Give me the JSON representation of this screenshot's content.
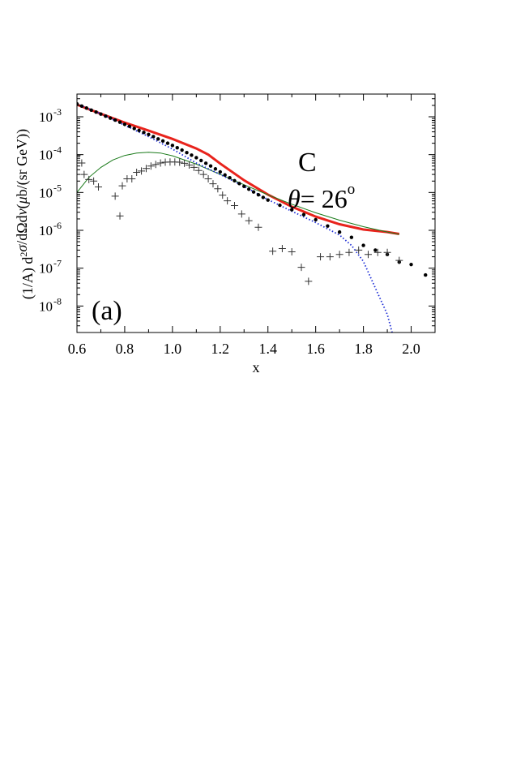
{
  "chart_data": {
    "type": "scatter",
    "panel_label": "(a)",
    "annotation_target": "C",
    "annotation_angle": {
      "symbol": "θ",
      "text": "= 26",
      "superscript": "o"
    },
    "xlabel": "x",
    "ylabel": {
      "parts": [
        {
          "t": "(1/A) d"
        },
        {
          "t": "2",
          "sup": true
        },
        {
          "t": "σ",
          "italic": true
        },
        {
          "t": "/dΩd"
        },
        {
          "t": "ν",
          "italic": true
        },
        {
          "t": "("
        },
        {
          "t": "μ",
          "italic": true
        },
        {
          "t": "b/(sr GeV))"
        }
      ]
    },
    "xlim": [
      0.6,
      2.1
    ],
    "ylim_log10": [
      -8.7,
      -2.4
    ],
    "x_ticks": [
      {
        "v": 0.6,
        "label": "0.6"
      },
      {
        "v": 0.8,
        "label": "0.8"
      },
      {
        "v": 1.0,
        "label": "1.0"
      },
      {
        "v": 1.2,
        "label": "1.2"
      },
      {
        "v": 1.4,
        "label": "1.4"
      },
      {
        "v": 1.6,
        "label": "1.6"
      },
      {
        "v": 1.8,
        "label": "1.8"
      },
      {
        "v": 2.0,
        "label": "2.0"
      }
    ],
    "y_ticks": [
      {
        "exp": -3,
        "base": "10",
        "label": "-3"
      },
      {
        "exp": -4,
        "base": "10",
        "label": "-4"
      },
      {
        "exp": -5,
        "base": "10",
        "label": "-5"
      },
      {
        "exp": -6,
        "base": "10",
        "label": "-6"
      },
      {
        "exp": -7,
        "base": "10",
        "label": "-7"
      },
      {
        "exp": -8,
        "base": "10",
        "label": "-8"
      }
    ],
    "series": [
      {
        "style": "solid-thick",
        "color": "#e8231c",
        "x": [
          0.6,
          0.7,
          0.8,
          0.9,
          1.0,
          1.1,
          1.15,
          1.2,
          1.3,
          1.4,
          1.5,
          1.6,
          1.7,
          1.8,
          1.9,
          1.95
        ],
        "y": [
          0.0021,
          0.0012,
          0.0007,
          0.00043,
          0.00026,
          0.000145,
          0.0001,
          5.8e-05,
          2.1e-05,
          8.8e-06,
          4.2e-06,
          2.3e-06,
          1.45e-06,
          1.05e-06,
          9e-07,
          8e-07
        ]
      },
      {
        "style": "solid-thin",
        "color": "#1a7a1a",
        "x": [
          0.6,
          0.65,
          0.7,
          0.75,
          0.8,
          0.85,
          0.9,
          0.95,
          1.0,
          1.1,
          1.2,
          1.3,
          1.4,
          1.5,
          1.6,
          1.7,
          1.8,
          1.9,
          1.95
        ],
        "y": [
          1e-05,
          2.5e-05,
          4.6e-05,
          7.2e-05,
          9.5e-05,
          0.00011,
          0.000115,
          0.00011,
          9.3e-05,
          5.6e-05,
          3e-05,
          1.6e-05,
          8.7e-06,
          4.9e-06,
          2.9e-06,
          1.85e-06,
          1.25e-06,
          9e-07,
          7.8e-07
        ]
      },
      {
        "style": "dotted",
        "color": "#1f2fd6",
        "x": [
          0.6,
          0.7,
          0.8,
          0.9,
          1.0,
          1.1,
          1.2,
          1.3,
          1.4,
          1.5,
          1.6,
          1.7,
          1.75,
          1.8,
          1.85,
          1.9,
          1.92
        ],
        "y": [
          0.0022,
          0.0012,
          0.0006,
          0.0003,
          0.00014,
          6e-05,
          3e-05,
          1.45e-05,
          6.5e-06,
          3.2e-06,
          1.6e-06,
          7.5e-07,
          4e-07,
          1.5e-07,
          3e-08,
          6e-09,
          2e-09
        ]
      },
      {
        "marker": "dot",
        "color": "#000000",
        "x": [
          0.6,
          0.62,
          0.64,
          0.66,
          0.68,
          0.7,
          0.72,
          0.74,
          0.76,
          0.78,
          0.8,
          0.82,
          0.84,
          0.86,
          0.88,
          0.9,
          0.92,
          0.94,
          0.96,
          0.98,
          1.0,
          1.02,
          1.04,
          1.06,
          1.08,
          1.1,
          1.12,
          1.14,
          1.16,
          1.18,
          1.2,
          1.22,
          1.24,
          1.26,
          1.28,
          1.3,
          1.32,
          1.34,
          1.36,
          1.38,
          1.4,
          1.45,
          1.5,
          1.55,
          1.6,
          1.65,
          1.7,
          1.75,
          1.8,
          1.85,
          1.9,
          1.95,
          2.0,
          2.06
        ],
        "y": [
          0.0022,
          0.00192,
          0.0017,
          0.0015,
          0.00133,
          0.00118,
          0.00104,
          0.00092,
          0.00082,
          0.00072,
          0.00063,
          0.00056,
          0.00049,
          0.000435,
          0.000385,
          0.00034,
          0.0003,
          0.00026,
          0.00023,
          0.0002,
          0.000175,
          0.000152,
          0.000132,
          0.000113,
          9.7e-05,
          8.3e-05,
          7e-05,
          5.9e-05,
          5e-05,
          4.2e-05,
          3.5e-05,
          2.9e-05,
          2.45e-05,
          2.05e-05,
          1.72e-05,
          1.45e-05,
          1.22e-05,
          1.03e-05,
          8.7e-06,
          7.4e-06,
          6.3e-06,
          4.6e-06,
          3.5e-06,
          2.6e-06,
          1.9e-06,
          1.3e-06,
          9e-07,
          6.5e-07,
          4e-07,
          3e-07,
          2.3e-07,
          1.45e-07,
          1.25e-07,
          6.6e-08
        ]
      },
      {
        "marker": "plus",
        "color": "#333333",
        "x": [
          0.6,
          0.62,
          0.63,
          0.65,
          0.67,
          0.69,
          0.76,
          0.78,
          0.79,
          0.81,
          0.83,
          0.85,
          0.87,
          0.89,
          0.91,
          0.93,
          0.95,
          0.97,
          0.99,
          1.01,
          1.03,
          1.05,
          1.07,
          1.09,
          1.11,
          1.13,
          1.15,
          1.17,
          1.19,
          1.21,
          1.23,
          1.26,
          1.29,
          1.32,
          1.36,
          1.42,
          1.46,
          1.5,
          1.54,
          1.57,
          1.62,
          1.66,
          1.7,
          1.74,
          1.78,
          1.82,
          1.86,
          1.9,
          1.95
        ],
        "y": [
          9.5e-05,
          6e-05,
          3e-05,
          2.2e-05,
          2e-05,
          1.4e-05,
          8e-06,
          2.4e-06,
          1.5e-05,
          2.3e-05,
          2.3e-05,
          3.4e-05,
          3.7e-05,
          4.3e-05,
          5e-05,
          5.5e-05,
          6e-05,
          6.3e-05,
          6.4e-05,
          6.4e-05,
          6.3e-05,
          5.9e-05,
          5.3e-05,
          4.6e-05,
          3.8e-05,
          3e-05,
          2.3e-05,
          1.7e-05,
          1.25e-05,
          8.5e-06,
          6e-06,
          4.5e-06,
          2.7e-06,
          1.8e-06,
          1.2e-06,
          2.8e-07,
          3.3e-07,
          2.7e-07,
          1.05e-07,
          4.5e-08,
          2e-07,
          2e-07,
          2.3e-07,
          2.6e-07,
          3e-07,
          2.3e-07,
          2.6e-07,
          2.6e-07,
          1.6e-07
        ]
      }
    ]
  }
}
